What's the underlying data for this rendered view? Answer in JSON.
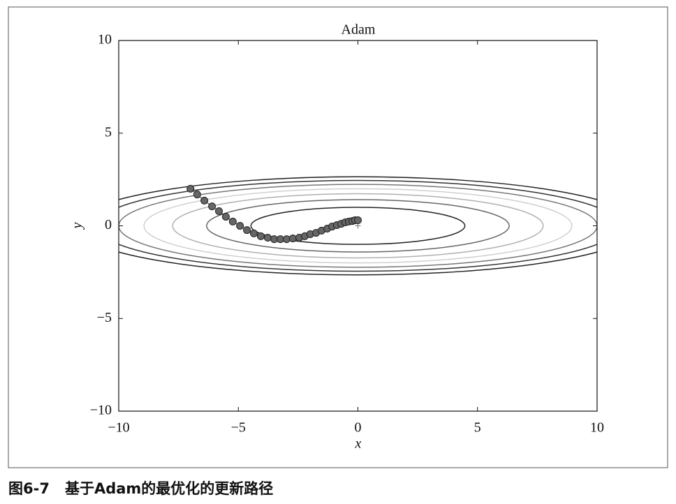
{
  "chart_data": {
    "type": "scatter",
    "title": "Adam",
    "x_label": "x",
    "y_label": "y",
    "xlim": [
      -10,
      10
    ],
    "ylim": [
      -10,
      10
    ],
    "xticks": [
      {
        "value": -10,
        "label": "−10"
      },
      {
        "value": -5,
        "label": "−5"
      },
      0,
      5,
      10
    ],
    "yticks": [
      {
        "value": -10,
        "label": "−10"
      },
      {
        "value": -5,
        "label": "−5"
      },
      0,
      5,
      10
    ],
    "contour_levels": [
      1,
      2,
      3,
      4,
      5,
      6,
      7
    ],
    "contour_colors": [
      "#222222",
      "#666666",
      "#b0b0b0",
      "#d0d0d0",
      "#777777",
      "#333333",
      "#222222"
    ],
    "optimum": {
      "x": 0,
      "y": 0
    },
    "series": [
      {
        "name": "Adam",
        "color": "#666666",
        "x": [
          -7.0,
          -6.72,
          -6.42,
          -6.1,
          -5.81,
          -5.52,
          -5.23,
          -4.93,
          -4.64,
          -4.35,
          -4.06,
          -3.77,
          -3.5,
          -3.24,
          -2.98,
          -2.72,
          -2.45,
          -2.22,
          -1.99,
          -1.75,
          -1.52,
          -1.28,
          -1.08,
          -0.88,
          -0.7,
          -0.53,
          -0.38,
          -0.23,
          -0.12,
          0.0
        ],
        "values": [
          2.0,
          1.69,
          1.36,
          1.05,
          0.79,
          0.49,
          0.23,
          0.0,
          -0.23,
          -0.41,
          -0.56,
          -0.64,
          -0.72,
          -0.72,
          -0.72,
          -0.68,
          -0.64,
          -0.56,
          -0.45,
          -0.38,
          -0.26,
          -0.15,
          -0.04,
          0.04,
          0.11,
          0.19,
          0.23,
          0.26,
          0.3,
          0.3
        ]
      }
    ]
  },
  "caption": {
    "label": "图6-7",
    "text": "基于Adam的最优化的更新路径"
  }
}
